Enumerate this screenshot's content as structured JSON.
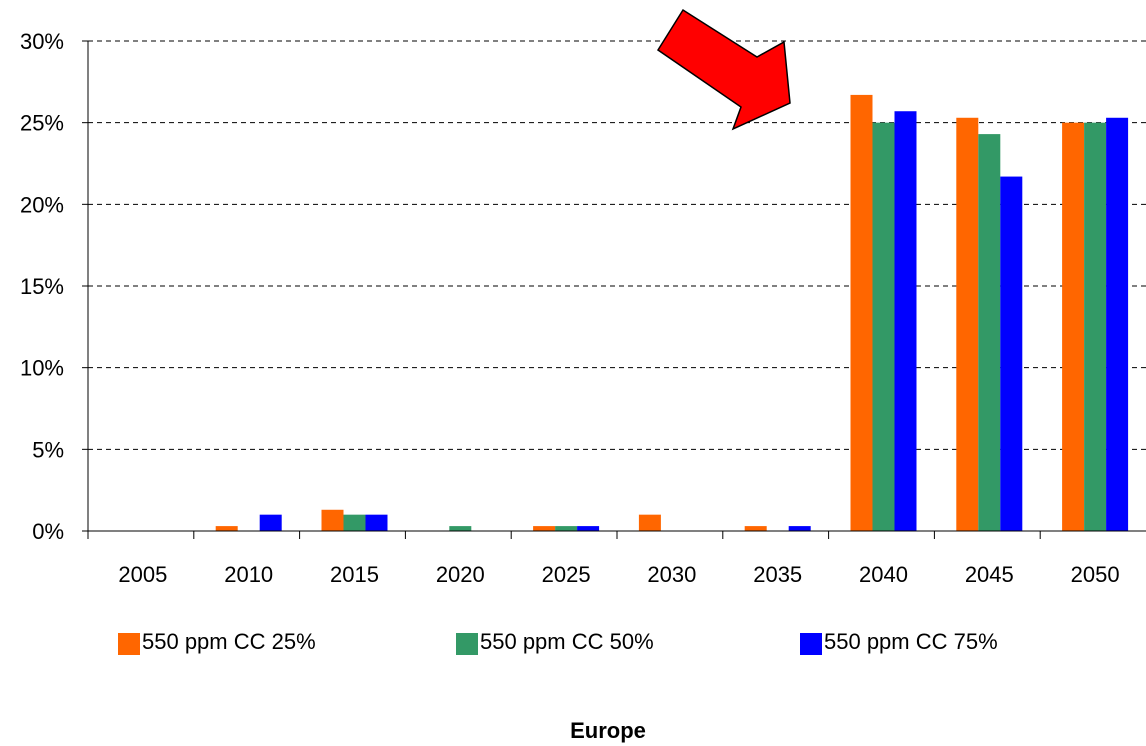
{
  "chart_data": {
    "type": "bar",
    "categories": [
      "2005",
      "2010",
      "2015",
      "2020",
      "2025",
      "2030",
      "2035",
      "2040",
      "2045",
      "2050"
    ],
    "series": [
      {
        "name": "550 ppm CC 25%",
        "color": "#ff6600",
        "values": [
          0,
          0.3,
          1.3,
          0,
          0.3,
          1.0,
          0.3,
          26.7,
          25.3,
          25.0
        ]
      },
      {
        "name": "550 ppm CC 50%",
        "color": "#339966",
        "values": [
          0,
          0,
          1.0,
          0.3,
          0.3,
          0,
          0,
          25.0,
          24.3,
          25.0
        ]
      },
      {
        "name": "550 ppm CC 75%",
        "color": "#0000ff",
        "values": [
          0,
          1.0,
          1.0,
          0,
          0.3,
          0,
          0.3,
          25.7,
          21.7,
          25.3
        ]
      }
    ],
    "yticks": [
      "0%",
      "5%",
      "10%",
      "15%",
      "20%",
      "25%",
      "30%"
    ],
    "ylim": [
      0,
      30
    ],
    "grid": "dashed horizontal",
    "legend": "bottom",
    "caption": "Europe",
    "annotation": {
      "type": "arrow",
      "color": "#ff0000",
      "points_to": "2040"
    }
  }
}
